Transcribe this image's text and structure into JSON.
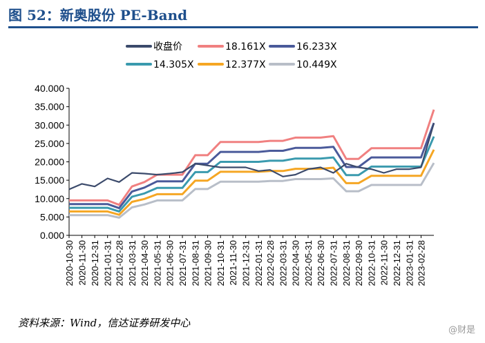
{
  "header": {
    "title": "图 52：新奥股份 PE-Band"
  },
  "footer": {
    "source": "资料来源：Wind，信达证券研发中心",
    "watermark": "@财是"
  },
  "chart_data": {
    "type": "line",
    "title": "",
    "xlabel": "",
    "ylabel": "",
    "ylim": [
      0,
      40
    ],
    "yticks": [
      "0.000",
      "5.000",
      "10.000",
      "15.000",
      "20.000",
      "25.000",
      "30.000",
      "35.000",
      "40.000"
    ],
    "xticks": [
      "2020-10-30",
      "2020-11-30",
      "2020-12-31",
      "2021-01-31",
      "2021-02-28",
      "2021-03-31",
      "2021-04-30",
      "2021-05-31",
      "2021-06-30",
      "2021-07-31",
      "2021-08-31",
      "2021-09-30",
      "2021-10-31",
      "2021-11-30",
      "2021-12-31",
      "2022-01-31",
      "2022-02-28",
      "2022-03-31",
      "2022-04-30",
      "2022-05-31",
      "2022-06-30",
      "2022-07-31",
      "2022-08-31",
      "2022-09-30",
      "2022-10-31",
      "2022-11-30",
      "2022-12-31",
      "2023-01-31",
      "2023-02-28"
    ],
    "x": [
      "2020-10-30",
      "2020-11-30",
      "2020-12-31",
      "2021-01-31",
      "2021-02-28",
      "2021-03-31",
      "2021-04-30",
      "2021-05-31",
      "2021-06-30",
      "2021-07-31",
      "2021-08-31",
      "2021-09-30",
      "2021-10-31",
      "2021-11-30",
      "2021-12-31",
      "2022-01-31",
      "2022-02-28",
      "2022-03-31",
      "2022-04-30",
      "2022-05-31",
      "2022-06-30",
      "2022-07-31",
      "2022-08-31",
      "2022-09-30",
      "2022-10-31",
      "2022-11-30",
      "2022-12-31",
      "2023-01-31",
      "2023-02-28",
      "2023-03-31"
    ],
    "legend_position": "top",
    "grid": false,
    "series": [
      {
        "name": "收盘价",
        "color": "#3b4a6b",
        "values": [
          12.5,
          14.0,
          13.3,
          15.5,
          14.5,
          17.0,
          16.8,
          16.5,
          16.8,
          17.2,
          19.5,
          19.0,
          18.5,
          18.5,
          18.5,
          17.5,
          17.8,
          16.0,
          16.5,
          18.0,
          18.5,
          17.0,
          19.5,
          18.5,
          18.0,
          17.0,
          18.0,
          18.0,
          18.5,
          30.5
        ]
      },
      {
        "name": "18.161X",
        "color": "#f08080",
        "values": [
          9.5,
          9.5,
          9.5,
          9.5,
          8.3,
          13.3,
          14.5,
          16.5,
          16.5,
          16.5,
          21.8,
          21.8,
          25.4,
          25.4,
          25.4,
          25.4,
          25.7,
          25.7,
          26.6,
          26.6,
          26.6,
          27.0,
          20.8,
          20.8,
          23.7,
          23.7,
          23.7,
          23.7,
          23.7,
          34.2
        ]
      },
      {
        "name": "16.233X",
        "color": "#4a5a9a",
        "values": [
          8.5,
          8.5,
          8.5,
          8.5,
          7.4,
          11.9,
          13.0,
          14.7,
          14.7,
          14.7,
          19.5,
          19.5,
          22.7,
          22.7,
          22.7,
          22.7,
          23.0,
          23.0,
          23.8,
          23.8,
          23.8,
          24.1,
          18.6,
          18.6,
          21.2,
          21.2,
          21.2,
          21.2,
          21.2,
          30.6
        ]
      },
      {
        "name": "14.305X",
        "color": "#3a9aae",
        "values": [
          7.5,
          7.5,
          7.5,
          7.5,
          6.5,
          10.5,
          11.4,
          12.9,
          12.9,
          12.9,
          17.2,
          17.2,
          20.0,
          20.0,
          20.0,
          20.0,
          20.3,
          20.3,
          20.9,
          20.9,
          20.9,
          21.2,
          16.4,
          16.4,
          18.7,
          18.7,
          18.7,
          18.7,
          18.7,
          26.9
        ]
      },
      {
        "name": "12.377X",
        "color": "#f5a623",
        "values": [
          6.5,
          6.5,
          6.5,
          6.5,
          5.6,
          9.1,
          9.9,
          11.2,
          11.2,
          11.2,
          14.9,
          14.9,
          17.3,
          17.3,
          17.3,
          17.3,
          17.5,
          17.5,
          18.1,
          18.1,
          18.1,
          18.4,
          14.2,
          14.2,
          16.2,
          16.2,
          16.2,
          16.2,
          16.2,
          23.3
        ]
      },
      {
        "name": "10.449X",
        "color": "#b8bec8",
        "values": [
          5.5,
          5.5,
          5.5,
          5.5,
          4.8,
          7.6,
          8.4,
          9.5,
          9.5,
          9.5,
          12.6,
          12.6,
          14.6,
          14.6,
          14.6,
          14.6,
          14.8,
          14.8,
          15.3,
          15.3,
          15.3,
          15.5,
          12.0,
          12.0,
          13.7,
          13.7,
          13.7,
          13.7,
          13.7,
          19.7
        ]
      }
    ]
  }
}
